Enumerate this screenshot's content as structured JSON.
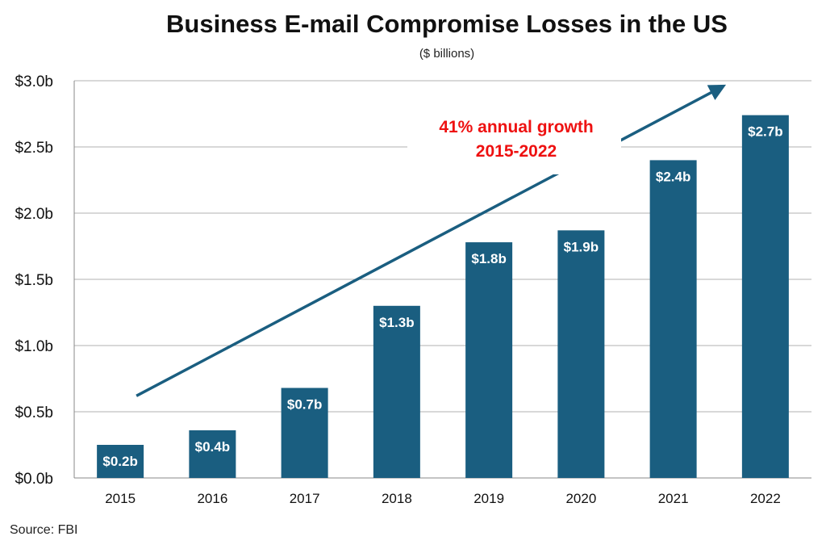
{
  "title": "Business E-mail Compromise Losses in the US",
  "subtitle": "($ billions)",
  "source": "Source: FBI",
  "annotation": {
    "line1": "41% annual growth",
    "line2": "2015-2022",
    "color": "#ee1111"
  },
  "colors": {
    "bar": "#1a5e80",
    "arrow": "#1a5e80",
    "grid": "#b0b0b0"
  },
  "chart_data": {
    "type": "bar",
    "title": "Business E-mail Compromise Losses in the US",
    "subtitle": "($ billions)",
    "categories": [
      "2015",
      "2016",
      "2017",
      "2018",
      "2019",
      "2020",
      "2021",
      "2022"
    ],
    "values": [
      0.25,
      0.36,
      0.68,
      1.3,
      1.78,
      1.87,
      2.4,
      2.74
    ],
    "data_labels": [
      "$0.2b",
      "$0.4b",
      "$0.7b",
      "$1.3b",
      "$1.8b",
      "$1.9b",
      "$2.4b",
      "$2.7b"
    ],
    "ylim": [
      0,
      3.0
    ],
    "yticks": [
      0,
      0.5,
      1.0,
      1.5,
      2.0,
      2.5,
      3.0
    ],
    "ytick_labels": [
      "$0.0b",
      "$0.5b",
      "$1.0b",
      "$1.5b",
      "$2.0b",
      "$2.5b",
      "$3.0b"
    ],
    "grid": true,
    "legend": "none",
    "trend_arrow": {
      "from": {
        "x": "2015",
        "y": 0.62
      },
      "to": {
        "x": "2022",
        "y": 2.95
      }
    }
  }
}
